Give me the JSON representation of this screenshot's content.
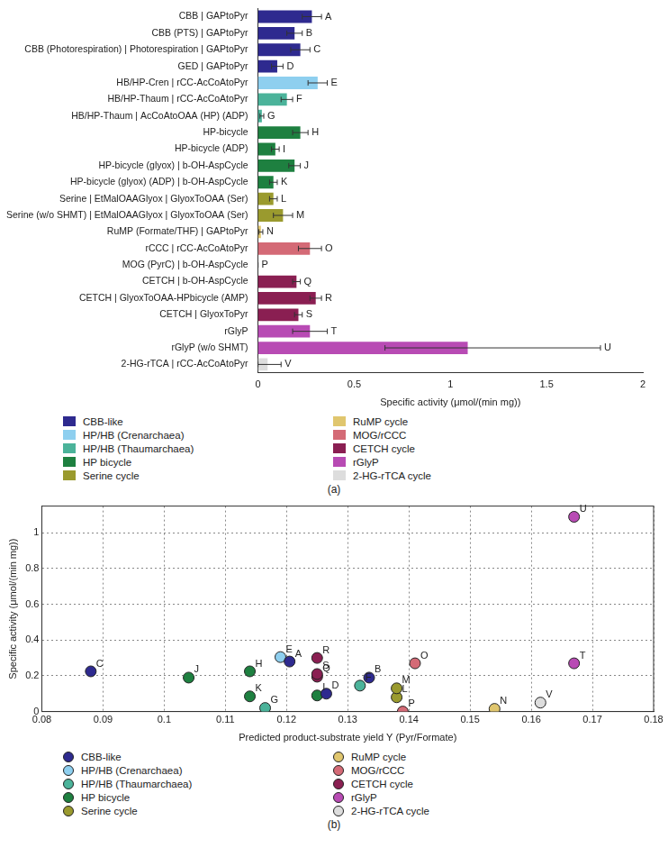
{
  "chart_data": [
    {
      "type": "bar",
      "orientation": "horizontal",
      "caption": "(a)",
      "x_label": "Specific activity (μmol/(min mg))",
      "categories": [
        "CBB | GAPtoPyr",
        "CBB (PTS) | GAPtoPyr",
        "CBB (Photorespiration) | Photorespiration | GAPtoPyr",
        "GED | GAPtoPyr",
        "HB/HP-Cren | rCC-AcCoAtoPyr",
        "HB/HP-Thaum | rCC-AcCoAtoPyr",
        "HB/HP-Thaum | AcCoAtoOAA (HP) (ADP)",
        "HP-bicycle",
        "HP-bicycle (ADP)",
        "HP-bicycle (glyox) | b-OH-AspCycle",
        "HP-bicycle (glyox) (ADP) | b-OH-AspCycle",
        "Serine | EtMalOAAGlyox | GlyoxToOAA (Ser)",
        "Serine (w/o SHMT) | EtMalOAAGlyox | GlyoxToOAA (Ser)",
        "RuMP (Formate/THF) | GAPtoPyr",
        "rCCC | rCC-AcCoAtoPyr",
        "MOG (PyrC) | b-OH-AspCycle",
        "CETCH | b-OH-AspCycle",
        "CETCH | GlyoxToOAA-HPbicycle (AMP)",
        "CETCH | GlyoxToPyr",
        "rGlyP",
        "rGlyP (w/o SHMT)",
        "2-HG-rTCA | rCC-AcCoAtoPyr"
      ],
      "values": [
        0.28,
        0.19,
        0.22,
        0.1,
        0.31,
        0.15,
        0.02,
        0.22,
        0.09,
        0.19,
        0.08,
        0.08,
        0.13,
        0.015,
        0.27,
        0,
        0.2,
        0.3,
        0.21,
        0.27,
        1.09,
        0.05
      ],
      "error_minus": [
        0.05,
        0.04,
        0.05,
        0.03,
        0.05,
        0.03,
        0.01,
        0.04,
        0.02,
        0.03,
        0.02,
        0.02,
        0.05,
        0.01,
        0.06,
        0,
        0.02,
        0.03,
        0.02,
        0.09,
        0.43,
        0.05
      ],
      "error_plus": [
        0.05,
        0.04,
        0.05,
        0.03,
        0.05,
        0.03,
        0.01,
        0.04,
        0.02,
        0.03,
        0.02,
        0.02,
        0.05,
        0.01,
        0.06,
        0,
        0.02,
        0.03,
        0.02,
        0.09,
        0.69,
        0.07
      ],
      "point_labels": [
        "A",
        "B",
        "C",
        "D",
        "E",
        "F",
        "G",
        "H",
        "I",
        "J",
        "K",
        "L",
        "M",
        "N",
        "O",
        "P",
        "Q",
        "R",
        "S",
        "T",
        "U",
        "V"
      ],
      "colors": [
        "#2e2a8f",
        "#2e2a8f",
        "#2e2a8f",
        "#2e2a8f",
        "#8ecfef",
        "#4bb39a",
        "#4bb39a",
        "#1e8040",
        "#1e8040",
        "#1e8040",
        "#1e8040",
        "#9a9a2e",
        "#9a9a2e",
        "#e0c66e",
        "#d46a76",
        "#d46a76",
        "#8a1f52",
        "#8a1f52",
        "#8a1f52",
        "#b84bb4",
        "#b84bb4",
        "#dddddd"
      ],
      "legend_items": [
        {
          "name": "CBB-like",
          "color": "#2e2a8f"
        },
        {
          "name": "HP/HB (Crenarchaea)",
          "color": "#8ecfef"
        },
        {
          "name": "HP/HB (Thaumarchaea)",
          "color": "#4bb39a"
        },
        {
          "name": "HP bicycle",
          "color": "#1e8040"
        },
        {
          "name": "Serine cycle",
          "color": "#9a9a2e"
        },
        {
          "name": "RuMP cycle",
          "color": "#e0c66e"
        },
        {
          "name": "MOG/rCCC",
          "color": "#d46a76"
        },
        {
          "name": "CETCH cycle",
          "color": "#8a1f52"
        },
        {
          "name": "rGlyP",
          "color": "#b84bb4"
        },
        {
          "name": "2-HG-rTCA cycle",
          "color": "#dddddd"
        }
      ],
      "legend": "bottom",
      "marker": "square",
      "xlim": [
        0,
        2
      ],
      "xticks": [
        0,
        0.5,
        1,
        1.5,
        2
      ],
      "grid": false
    },
    {
      "type": "scatter",
      "caption": "(b)",
      "x_label": "Predicted product-substrate yield Y (Pyr/Formate)",
      "y_label": "Specific activity (μmol/(min mg))",
      "series": [
        {
          "name": "CBB-like",
          "color": "#2e2a8f",
          "x": [
            0.1205,
            0.1335,
            0.088,
            0.1265
          ],
          "values": [
            0.28,
            0.19,
            0.225,
            0.1
          ],
          "point_labels": [
            "A",
            "B",
            "C",
            "D"
          ]
        },
        {
          "name": "HP/HB (Crenarchaea)",
          "color": "#8ecfef",
          "x": [
            0.119
          ],
          "values": [
            0.305
          ],
          "point_labels": [
            "E"
          ]
        },
        {
          "name": "HP/HB (Thaumarchaea)",
          "color": "#4bb39a",
          "x": [
            0.132,
            0.1165
          ],
          "values": [
            0.145,
            0.02
          ],
          "point_labels": [
            "F",
            "G"
          ]
        },
        {
          "name": "HP bicycle",
          "color": "#1e8040",
          "x": [
            0.114,
            0.125,
            0.104,
            0.114
          ],
          "values": [
            0.225,
            0.09,
            0.19,
            0.085
          ],
          "point_labels": [
            "H",
            "I",
            "J",
            "K"
          ]
        },
        {
          "name": "Serine cycle",
          "color": "#9a9a2e",
          "x": [
            0.138,
            0.138
          ],
          "values": [
            0.08,
            0.13
          ],
          "point_labels": [
            "L",
            "M"
          ]
        },
        {
          "name": "RuMP cycle",
          "color": "#e0c66e",
          "x": [
            0.154
          ],
          "values": [
            0.015
          ],
          "point_labels": [
            "N"
          ]
        },
        {
          "name": "MOG/rCCC",
          "color": "#d46a76",
          "x": [
            0.141,
            0.139
          ],
          "values": [
            0.27,
            0
          ],
          "point_labels": [
            "O",
            "P"
          ]
        },
        {
          "name": "CETCH cycle",
          "color": "#8a1f52",
          "x": [
            0.125,
            0.125,
            0.125
          ],
          "values": [
            0.195,
            0.3,
            0.21
          ],
          "point_labels": [
            "Q",
            "R",
            "S"
          ]
        },
        {
          "name": "rGlyP",
          "color": "#b84bb4",
          "x": [
            0.167,
            0.167
          ],
          "values": [
            0.27,
            1.09
          ],
          "point_labels": [
            "T",
            "U"
          ]
        },
        {
          "name": "2-HG-rTCA cycle",
          "color": "#dddddd",
          "x": [
            0.1615
          ],
          "values": [
            0.05
          ],
          "point_labels": [
            "V"
          ]
        }
      ],
      "legend": "bottom",
      "marker": "circle",
      "xlim": [
        0.08,
        0.18
      ],
      "xticks": [
        0.08,
        0.09,
        0.1,
        0.11,
        0.12,
        0.13,
        0.14,
        0.15,
        0.16,
        0.17,
        0.18
      ],
      "ylim": [
        0,
        1.15
      ],
      "yticks": [
        0,
        0.2,
        0.4,
        0.6,
        0.8,
        1
      ],
      "grid": true
    }
  ]
}
